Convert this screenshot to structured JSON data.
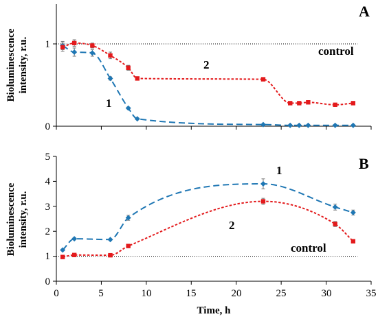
{
  "colors": {
    "series1": "#1f77b4",
    "series2": "#e31a1c"
  },
  "x_axis": {
    "label": "Time, h",
    "ticks": [
      "0",
      "5",
      "10",
      "15",
      "20",
      "25",
      "30",
      "35"
    ]
  },
  "chart_data": [
    {
      "type": "line",
      "panel": "A",
      "ylabel": "Bioluminescence intensity, r.u.",
      "xlabel": "",
      "xlim": [
        0,
        35
      ],
      "ylim": [
        0,
        1.5
      ],
      "yticks": [
        "0",
        "1"
      ],
      "control_label": "control",
      "control_value": 1,
      "series": [
        {
          "name": "1",
          "color": "#1f77b4",
          "x": [
            0.7,
            2,
            4,
            6,
            8,
            9,
            23,
            26,
            27,
            28,
            31,
            33
          ],
          "y": [
            0.98,
            0.9,
            0.89,
            0.58,
            0.22,
            0.09,
            0.02,
            0.01,
            0.01,
            0.01,
            0.01,
            0.01
          ],
          "err": [
            0.05,
            0.05,
            0.04,
            0.02,
            0.01,
            0.01,
            0.0,
            0.0,
            0.0,
            0.0,
            0.0,
            0.0
          ]
        },
        {
          "name": "2",
          "color": "#e31a1c",
          "x": [
            0.7,
            2,
            4,
            6,
            8,
            9,
            23,
            26,
            27,
            28,
            31,
            33
          ],
          "y": [
            0.96,
            1.01,
            0.98,
            0.86,
            0.71,
            0.58,
            0.57,
            0.28,
            0.28,
            0.29,
            0.26,
            0.28
          ],
          "err": [
            0.05,
            0.04,
            0.03,
            0.04,
            0.03,
            0.02,
            0.02,
            0.01,
            0.01,
            0.01,
            0.01,
            0.01
          ]
        }
      ]
    },
    {
      "type": "line",
      "panel": "B",
      "ylabel": "Bioluminescence intensity, r.u.",
      "xlabel": "Time, h",
      "xlim": [
        0,
        35
      ],
      "ylim": [
        0,
        5
      ],
      "yticks": [
        "0",
        "1",
        "2",
        "3",
        "4",
        "5"
      ],
      "control_label": "control",
      "control_value": 1,
      "series": [
        {
          "name": "1",
          "color": "#1f77b4",
          "x": [
            0.7,
            2,
            6,
            8,
            23,
            31,
            33
          ],
          "y": [
            1.25,
            1.7,
            1.67,
            2.54,
            3.9,
            2.97,
            2.75
          ],
          "err": [
            0.03,
            0.04,
            0.03,
            0.1,
            0.2,
            0.12,
            0.1
          ]
        },
        {
          "name": "2",
          "color": "#e31a1c",
          "x": [
            0.7,
            2,
            6,
            8,
            23,
            31,
            33
          ],
          "y": [
            0.97,
            1.05,
            1.04,
            1.41,
            3.2,
            2.29,
            1.6
          ],
          "err": [
            0.02,
            0.02,
            0.02,
            0.04,
            0.12,
            0.1,
            0.04
          ]
        }
      ]
    }
  ]
}
